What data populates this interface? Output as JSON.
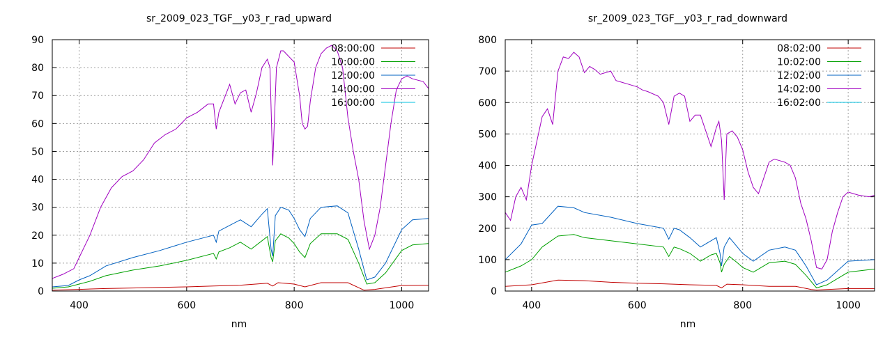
{
  "chart_data": [
    {
      "type": "line",
      "title": "sr_2009_023_TGF__y03_r_rad_upward",
      "xlabel": "nm",
      "ylabel": "",
      "xlim": [
        350,
        1050
      ],
      "ylim": [
        0,
        90
      ],
      "xticks": [
        400,
        600,
        800,
        1000
      ],
      "yticks": [
        0,
        10,
        20,
        30,
        40,
        50,
        60,
        70,
        80,
        90
      ],
      "grid": true,
      "legend_position": "top-right",
      "series": [
        {
          "name": "08:00:00",
          "color": "#c00000",
          "x": [
            350,
            400,
            450,
            500,
            550,
            600,
            650,
            700,
            750,
            760,
            770,
            800,
            820,
            850,
            900,
            930,
            950,
            1000,
            1050
          ],
          "y": [
            0.3,
            0.6,
            0.9,
            1.1,
            1.3,
            1.5,
            1.8,
            2.1,
            2.8,
            1.8,
            3.0,
            2.5,
            1.5,
            3.0,
            3.0,
            0.3,
            0.6,
            2.0,
            2.1
          ]
        },
        {
          "name": "10:00:00",
          "color": "#00a000",
          "x": [
            350,
            380,
            400,
            420,
            450,
            500,
            550,
            600,
            650,
            655,
            660,
            680,
            700,
            720,
            740,
            750,
            757,
            760,
            765,
            775,
            790,
            800,
            810,
            820,
            830,
            850,
            880,
            900,
            920,
            935,
            950,
            970,
            1000,
            1020,
            1050
          ],
          "y": [
            1.0,
            1.5,
            2.5,
            3.5,
            5.5,
            7.5,
            9.0,
            11.0,
            13.5,
            11.5,
            14.0,
            15.5,
            17.5,
            15.0,
            18.0,
            19.5,
            12.0,
            10.5,
            18.0,
            20.5,
            19.0,
            17.0,
            14.0,
            12.0,
            17.0,
            20.5,
            20.5,
            18.5,
            10.0,
            2.5,
            3.0,
            6.5,
            14.5,
            16.5,
            17.0
          ]
        },
        {
          "name": "12:00:00",
          "color": "#0060c0",
          "x": [
            350,
            380,
            400,
            420,
            450,
            500,
            550,
            600,
            650,
            655,
            660,
            680,
            700,
            720,
            740,
            750,
            757,
            760,
            765,
            775,
            790,
            800,
            810,
            820,
            830,
            850,
            880,
            900,
            920,
            935,
            950,
            970,
            1000,
            1020,
            1050
          ],
          "y": [
            1.5,
            2.0,
            4.0,
            5.5,
            9.0,
            12.0,
            14.5,
            17.5,
            20.0,
            17.5,
            21.5,
            23.5,
            25.5,
            23.0,
            27.5,
            29.5,
            15.0,
            12.5,
            27.0,
            30.0,
            29.0,
            26.0,
            22.0,
            19.5,
            26.0,
            30.0,
            30.5,
            28.0,
            15.0,
            4.0,
            5.0,
            10.0,
            22.0,
            25.5,
            26.0
          ]
        },
        {
          "name": "14:00:00",
          "color": "#a000c0",
          "x": [
            350,
            370,
            390,
            400,
            420,
            440,
            460,
            480,
            500,
            520,
            540,
            560,
            580,
            600,
            620,
            640,
            650,
            655,
            660,
            680,
            690,
            700,
            710,
            720,
            730,
            740,
            750,
            755,
            760,
            763,
            767,
            775,
            780,
            790,
            800,
            810,
            815,
            820,
            825,
            830,
            840,
            850,
            860,
            870,
            880,
            890,
            900,
            910,
            920,
            930,
            940,
            950,
            960,
            970,
            980,
            990,
            1000,
            1010,
            1020,
            1040,
            1050
          ],
          "y": [
            4.5,
            6.0,
            8.0,
            12.0,
            20.0,
            30.0,
            37.0,
            41.0,
            43.0,
            47.0,
            53.0,
            56.0,
            58.0,
            62.0,
            64.0,
            67.0,
            67.0,
            58.0,
            64.0,
            74.0,
            67.0,
            71.0,
            72.0,
            64.0,
            71.0,
            80.0,
            83.0,
            80.0,
            45.0,
            60.0,
            80.0,
            86.0,
            86.0,
            84.0,
            82.0,
            70.0,
            60.0,
            58.0,
            59.0,
            68.0,
            80.0,
            85.0,
            87.0,
            88.0,
            86.0,
            80.0,
            62.0,
            50.0,
            40.0,
            25.0,
            15.0,
            20.0,
            30.0,
            45.0,
            60.0,
            72.0,
            76.0,
            77.0,
            76.0,
            75.0,
            72.5
          ]
        },
        {
          "name": "16:00:00",
          "color": "#00c0e0",
          "x": [],
          "y": []
        }
      ]
    },
    {
      "type": "line",
      "title": "sr_2009_023_TGF__y03_r_rad_downward",
      "xlabel": "nm",
      "ylabel": "",
      "xlim": [
        350,
        1050
      ],
      "ylim": [
        0,
        800
      ],
      "xticks": [
        400,
        600,
        800,
        1000
      ],
      "yticks": [
        0,
        100,
        200,
        300,
        400,
        500,
        600,
        700,
        800
      ],
      "grid": true,
      "legend_position": "top-right",
      "series": [
        {
          "name": "08:02:00",
          "color": "#c00000",
          "x": [
            350,
            400,
            450,
            500,
            550,
            600,
            650,
            700,
            750,
            760,
            770,
            800,
            850,
            900,
            930,
            940,
            960,
            1000,
            1050
          ],
          "y": [
            15,
            20,
            35,
            33,
            28,
            25,
            23,
            20,
            18,
            10,
            22,
            20,
            15,
            15,
            5,
            3,
            5,
            8,
            8
          ]
        },
        {
          "name": "10:02:00",
          "color": "#00a000",
          "x": [
            350,
            380,
            400,
            420,
            450,
            480,
            500,
            550,
            600,
            650,
            660,
            670,
            680,
            700,
            720,
            740,
            750,
            757,
            760,
            765,
            775,
            790,
            800,
            820,
            850,
            880,
            900,
            920,
            940,
            960,
            1000,
            1050
          ],
          "y": [
            60,
            80,
            100,
            140,
            175,
            180,
            170,
            160,
            150,
            140,
            110,
            140,
            135,
            120,
            95,
            115,
            120,
            90,
            60,
            85,
            110,
            90,
            75,
            60,
            90,
            95,
            85,
            50,
            10,
            20,
            60,
            70
          ]
        },
        {
          "name": "12:02:00",
          "color": "#0060c0",
          "x": [
            350,
            380,
            400,
            420,
            450,
            480,
            500,
            550,
            600,
            650,
            660,
            670,
            680,
            700,
            720,
            740,
            750,
            757,
            760,
            765,
            775,
            790,
            800,
            820,
            850,
            880,
            900,
            920,
            940,
            960,
            1000,
            1050
          ],
          "y": [
            100,
            150,
            210,
            215,
            270,
            265,
            250,
            235,
            215,
            200,
            165,
            200,
            195,
            170,
            140,
            160,
            170,
            120,
            80,
            140,
            170,
            140,
            120,
            95,
            130,
            140,
            130,
            80,
            20,
            35,
            95,
            100
          ]
        },
        {
          "name": "14:02:00",
          "color": "#a000c0",
          "x": [
            350,
            360,
            370,
            380,
            390,
            400,
            420,
            430,
            440,
            450,
            460,
            470,
            480,
            490,
            500,
            510,
            520,
            530,
            550,
            560,
            580,
            600,
            610,
            620,
            640,
            650,
            660,
            670,
            680,
            690,
            700,
            710,
            720,
            740,
            750,
            755,
            760,
            765,
            770,
            780,
            790,
            800,
            810,
            820,
            830,
            850,
            860,
            870,
            880,
            890,
            900,
            910,
            920,
            930,
            940,
            950,
            960,
            970,
            980,
            990,
            1000,
            1010,
            1020,
            1040,
            1050
          ],
          "y": [
            250,
            225,
            300,
            330,
            290,
            400,
            555,
            580,
            530,
            700,
            745,
            740,
            760,
            745,
            695,
            715,
            705,
            690,
            700,
            670,
            660,
            650,
            640,
            635,
            620,
            600,
            530,
            620,
            630,
            620,
            540,
            560,
            560,
            460,
            520,
            540,
            480,
            290,
            500,
            510,
            490,
            450,
            380,
            330,
            310,
            410,
            420,
            415,
            410,
            400,
            360,
            280,
            230,
            160,
            75,
            70,
            100,
            190,
            250,
            300,
            315,
            310,
            305,
            300,
            305
          ]
        },
        {
          "name": "16:02:00",
          "color": "#00c0e0",
          "x": [],
          "y": []
        }
      ]
    }
  ]
}
